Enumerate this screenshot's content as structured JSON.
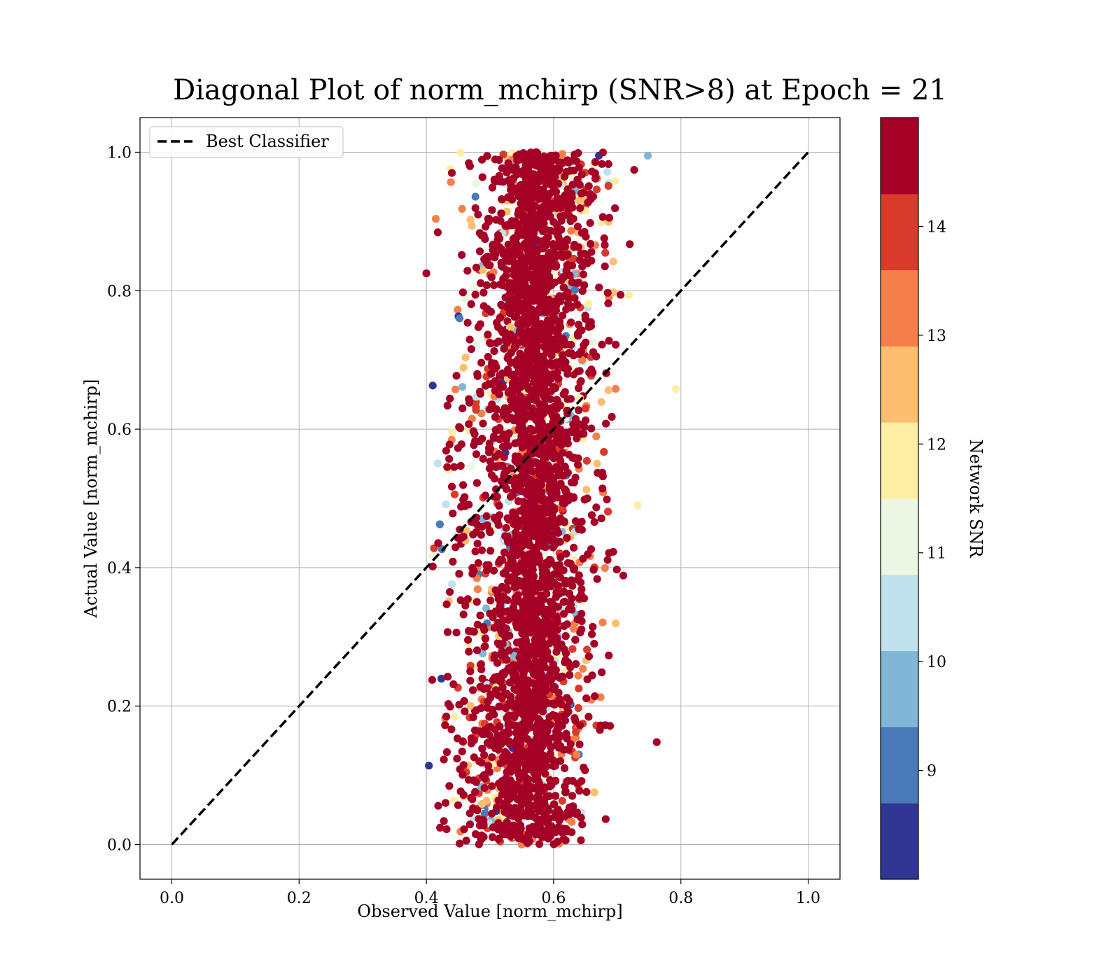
{
  "chart_data": {
    "type": "scatter",
    "title": "Diagonal Plot of norm_mchirp (SNR>8) at Epoch = 21",
    "xlabel": "Observed Value [norm_mchirp]",
    "ylabel": "Actual Value [norm_mchirp]",
    "xlim": [
      -0.05,
      1.05
    ],
    "ylim": [
      -0.05,
      1.05
    ],
    "xticks": [
      "0.0",
      "0.2",
      "0.4",
      "0.6",
      "0.8",
      "1.0"
    ],
    "yticks": [
      "0.0",
      "0.2",
      "0.4",
      "0.6",
      "0.8",
      "1.0"
    ],
    "grid": true,
    "legend": {
      "position": "top-left",
      "entries": [
        "Best Classifier"
      ]
    },
    "reference_line": {
      "name": "Best Classifier",
      "style": "dashed",
      "color": "#000000",
      "x": [
        0.0,
        1.0
      ],
      "y": [
        0.0,
        1.0
      ]
    },
    "colorbar": {
      "label": "Network SNR",
      "range": [
        8,
        15
      ],
      "ticks": [
        "9",
        "10",
        "11",
        "12",
        "13",
        "14"
      ],
      "tick_values": [
        9,
        10,
        11,
        12,
        13,
        14
      ],
      "colors": [
        "#313695",
        "#4a7ab7",
        "#82b6d6",
        "#bfe2ec",
        "#ebf6e3",
        "#feeea4",
        "#fdbe6f",
        "#f57f4b",
        "#d83b2c",
        "#a50026"
      ]
    },
    "scatter_summary": {
      "core_x_range": [
        0.51,
        0.63
      ],
      "core_y_range": [
        0.0,
        1.0
      ],
      "spread_x_range": [
        0.4,
        0.79
      ],
      "note_points": [
        {
          "x": 0.404,
          "y": 0.114,
          "snr": 8.5
        },
        {
          "x": 0.4,
          "y": 0.825,
          "snr": 14.5
        },
        {
          "x": 0.41,
          "y": 0.663,
          "snr": 8.5
        },
        {
          "x": 0.792,
          "y": 0.658,
          "snr": 12.0
        },
        {
          "x": 0.762,
          "y": 0.148,
          "snr": 14.8
        },
        {
          "x": 0.748,
          "y": 0.995,
          "snr": 9.5
        },
        {
          "x": 0.44,
          "y": 0.97,
          "snr": 14.8
        },
        {
          "x": 0.412,
          "y": 0.428,
          "snr": 14.0
        }
      ]
    }
  }
}
